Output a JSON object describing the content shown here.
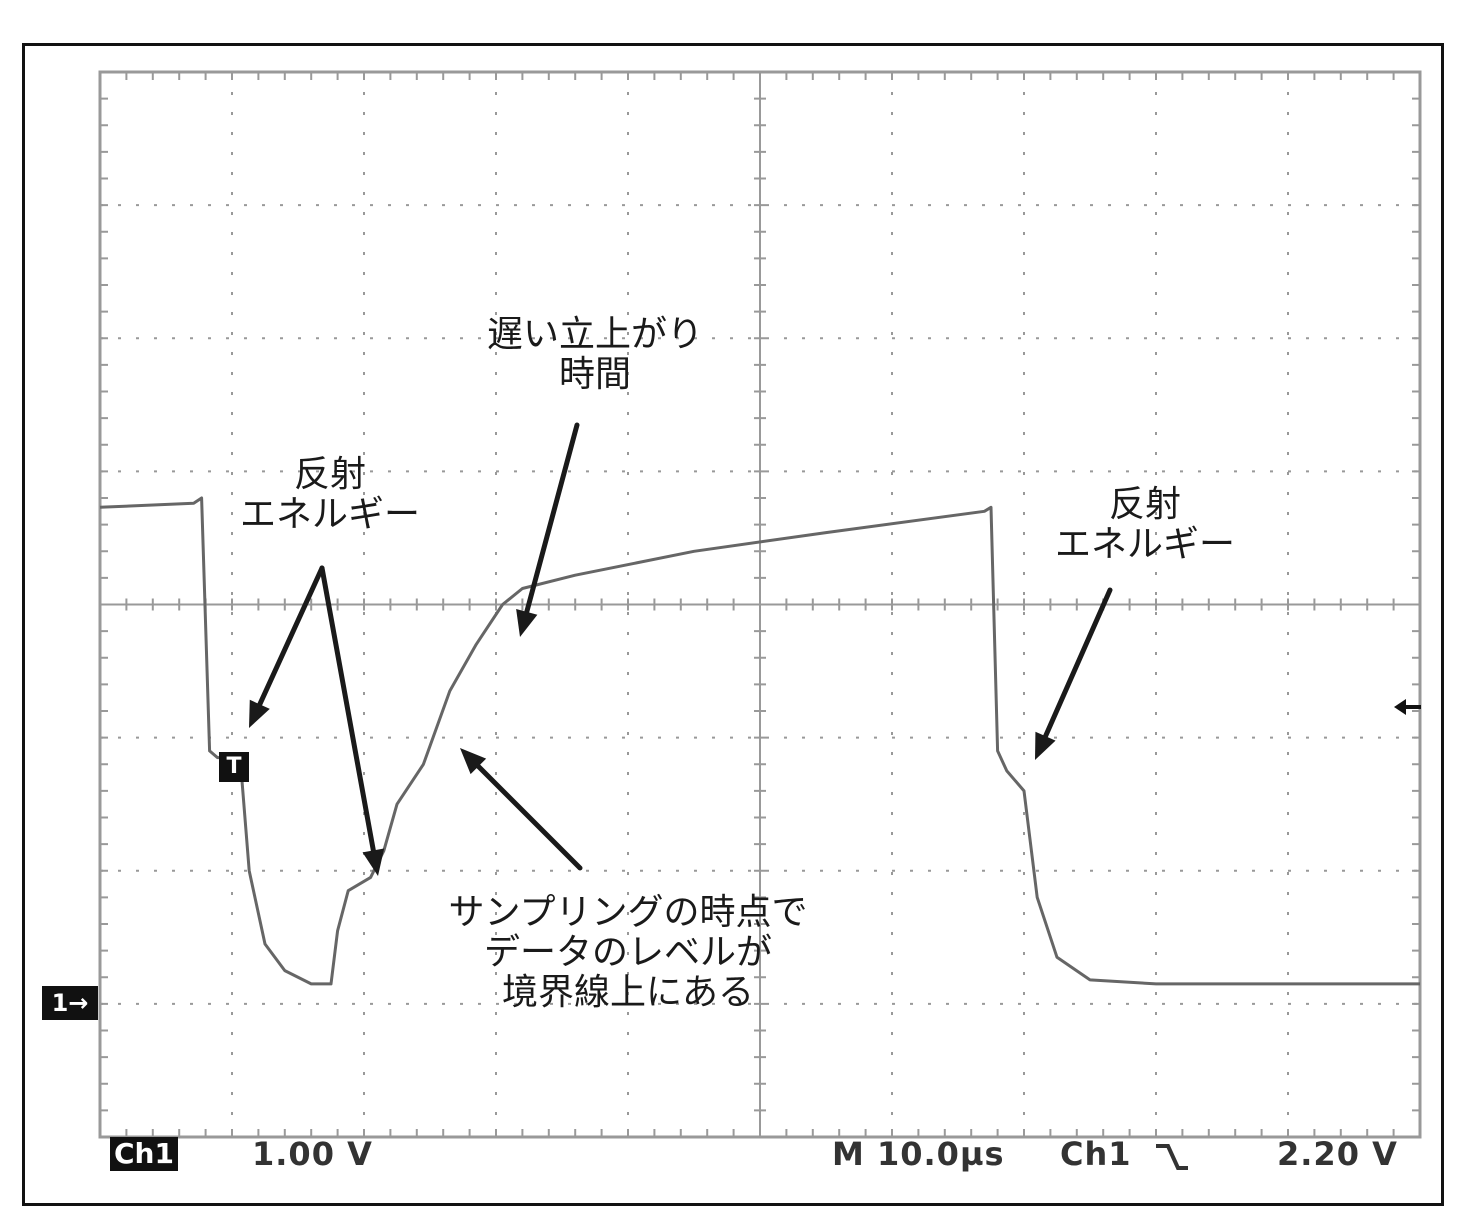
{
  "chart_data": {
    "type": "line",
    "title": "",
    "xlabel": "",
    "ylabel": "",
    "grid": true,
    "xlim": [
      0,
      100
    ],
    "ylim": [
      -4,
      4
    ],
    "x_unit": "µs",
    "y_unit": "V",
    "series": [
      {
        "points": [
          [
            0,
            0.73
          ],
          [
            7.1,
            0.76
          ],
          [
            7.7,
            0.8
          ],
          [
            8.3,
            -1.1
          ],
          [
            8.9,
            -1.15
          ],
          [
            9.5,
            -1.15
          ],
          [
            10.7,
            -1.25
          ],
          [
            11.3,
            -2.0
          ],
          [
            12.5,
            -2.55
          ],
          [
            14.0,
            -2.75
          ],
          [
            16.0,
            -2.85
          ],
          [
            17.5,
            -2.85
          ],
          [
            18.0,
            -2.45
          ],
          [
            18.8,
            -2.15
          ],
          [
            20.5,
            -2.05
          ],
          [
            21.5,
            -1.85
          ],
          [
            22.5,
            -1.5
          ],
          [
            24.5,
            -1.2
          ],
          [
            26.5,
            -0.65
          ],
          [
            28.5,
            -0.3
          ],
          [
            30.5,
            0.0
          ],
          [
            32.0,
            0.12
          ],
          [
            36.0,
            0.22
          ],
          [
            45.0,
            0.4
          ],
          [
            55.0,
            0.54
          ],
          [
            67.0,
            0.7
          ],
          [
            67.5,
            0.73
          ],
          [
            68.0,
            -1.1
          ],
          [
            68.7,
            -1.25
          ],
          [
            70.0,
            -1.4
          ],
          [
            71.0,
            -2.2
          ],
          [
            72.5,
            -2.65
          ],
          [
            75.0,
            -2.82
          ],
          [
            80.0,
            -2.85
          ],
          [
            100.0,
            -2.85
          ]
        ]
      }
    ],
    "annotations": [
      {
        "text": [
          "反射",
          "エネルギー"
        ]
      },
      {
        "text": [
          "遅い立上がり",
          "時間"
        ]
      },
      {
        "text": [
          "反射",
          "エネルギー"
        ]
      },
      {
        "text": [
          "サンプリングの時点で",
          "データのレベルが",
          "境界線上にある"
        ]
      }
    ]
  },
  "scope": {
    "channel_badge": "Ch1",
    "volts_per_div": "1.00 V",
    "timebase": "M 10.0µs",
    "trigger_source": "Ch1",
    "trigger_slope_icon": "falling-edge-icon",
    "trigger_level": "2.20 V",
    "trigger_marker": "T",
    "ground_marker": "1→"
  },
  "colors": {
    "grid": "#999999",
    "trace": "#666666",
    "arrow": "#1a1a1a",
    "frame": "#111111"
  }
}
